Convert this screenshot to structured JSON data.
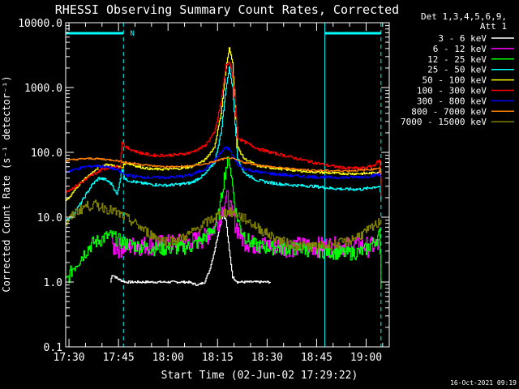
{
  "chart_data": {
    "type": "line",
    "title": "RHESSI Observing Summary Count Rates, Corrected",
    "xlabel": "Start Time (02-Jun-02 17:29:22)",
    "ylabel": "Corrected Count Rate (s⁻¹ detector⁻¹)",
    "yscale": "log",
    "ylim": [
      0.1,
      10000
    ],
    "xlim_minutes_after_1729": [
      0,
      98
    ],
    "y_ticks": [
      "0.1",
      "1.0",
      "10.0",
      "100.0",
      "1000.0",
      "10000.0"
    ],
    "x_ticks": [
      {
        "minute": 1,
        "label": "17:30"
      },
      {
        "minute": 16,
        "label": "17:45"
      },
      {
        "minute": 31,
        "label": "18:00"
      },
      {
        "minute": 46,
        "label": "18:15"
      },
      {
        "minute": 61,
        "label": "18:30"
      },
      {
        "minute": 76,
        "label": "18:45"
      },
      {
        "minute": 91,
        "label": "19:00"
      }
    ],
    "legend_header": [
      "Det 1,3,4,5,6,9,",
      "Att 1"
    ],
    "legend_position": "outside-right",
    "footer_timestamp": "16-Oct-2021 09:19",
    "annotations": [
      {
        "text": "N",
        "minute": 19.5
      }
    ],
    "flags": [
      {
        "name": "night",
        "start": 0,
        "end": 17.5,
        "color": "#00ffff"
      },
      {
        "name": "night",
        "start": 78.5,
        "end": 95.5,
        "color": "#00ffff"
      }
    ],
    "vertical_lines": [
      {
        "minute": 0,
        "style": "solid"
      },
      {
        "minute": 17.5,
        "style": "dashed"
      },
      {
        "minute": 78.5,
        "style": "solid"
      },
      {
        "minute": 95.5,
        "style": "dashed"
      }
    ],
    "series": [
      {
        "name": "3 - 6 keV",
        "color": "#ffffff",
        "x": [
          13.5,
          14,
          16,
          18,
          22,
          26,
          33,
          37,
          40,
          42,
          43.5,
          45,
          46.5,
          47.5,
          48.5,
          49.5,
          50.5,
          52,
          54,
          58,
          62
        ],
        "y": [
          1.0,
          1.3,
          1.1,
          1.0,
          1.0,
          1.0,
          1.0,
          1.0,
          0.9,
          1.0,
          1.5,
          3.0,
          7.0,
          11.0,
          9.0,
          3.0,
          1.2,
          1.0,
          1.0,
          1.0,
          1.0
        ]
      },
      {
        "name": "6 - 12 keV",
        "color": "#ff00ff",
        "x": [
          14,
          18,
          22,
          26,
          30,
          34,
          38,
          42,
          45,
          46.5,
          48,
          49,
          50,
          51.5,
          53,
          56,
          62,
          70,
          80,
          90,
          95
        ],
        "y": [
          3.5,
          3.6,
          3.8,
          3.9,
          4.0,
          4.1,
          4.3,
          5.0,
          7.0,
          10.0,
          17.0,
          20.0,
          13.0,
          8.0,
          5.0,
          4.0,
          3.7,
          3.7,
          3.7,
          3.7,
          3.7
        ]
      },
      {
        "name": "12 - 25 keV",
        "color": "#00ff00",
        "x": [
          0,
          2,
          4,
          6,
          8,
          10,
          12,
          14,
          16,
          18,
          22,
          26,
          30,
          34,
          38,
          41,
          43,
          45,
          46.5,
          47.5,
          48.5,
          49.5,
          50.5,
          51.5,
          53,
          56,
          60,
          65,
          70,
          75,
          80,
          85,
          90,
          93,
          95,
          95.5
        ],
        "y": [
          1.0,
          1.6,
          2.2,
          3.0,
          4.0,
          4.4,
          5.0,
          5.2,
          4.5,
          4.0,
          3.6,
          3.4,
          3.3,
          3.4,
          3.6,
          4.5,
          5.5,
          7.0,
          12.0,
          30.0,
          60.0,
          80.0,
          30.0,
          12.0,
          6.5,
          4.0,
          3.5,
          3.4,
          3.3,
          3.2,
          3.0,
          2.8,
          3.0,
          4.0,
          5.5,
          1.0
        ]
      },
      {
        "name": "25 - 50 keV",
        "color": "#00ffff",
        "x": [
          0,
          2,
          4,
          6,
          8,
          10,
          12,
          14,
          15.5,
          17,
          18,
          22,
          26,
          30,
          34,
          38,
          42,
          45,
          47,
          48.5,
          49.5,
          50.5,
          52,
          54,
          56,
          58,
          62,
          66,
          70,
          75,
          80,
          85,
          90,
          93,
          95,
          95.5
        ],
        "y": [
          9.0,
          11.0,
          15.0,
          22.0,
          32.0,
          40.0,
          38.0,
          32.0,
          22.0,
          55.0,
          38.0,
          34.0,
          32.0,
          31.0,
          32.0,
          34.0,
          45.0,
          70.0,
          200.0,
          1000.0,
          2000.0,
          1000.0,
          80.0,
          48.0,
          42.0,
          37.0,
          34.0,
          32.0,
          31.0,
          30.0,
          28.0,
          27.0,
          27.0,
          29.0,
          30.0,
          18.0
        ]
      },
      {
        "name": "50 - 100 keV",
        "color": "#ffff00",
        "x": [
          0,
          1,
          3,
          6,
          9,
          12,
          15,
          17,
          18,
          22,
          26,
          30,
          34,
          38,
          42,
          45,
          47,
          48.5,
          49.5,
          50.5,
          52,
          54,
          58,
          62,
          66,
          70,
          75,
          80,
          85,
          90,
          93,
          95,
          95.5
        ],
        "y": [
          18.0,
          20.0,
          28.0,
          40.0,
          55.0,
          65.0,
          62.0,
          58.0,
          70.0,
          60.0,
          55.0,
          55.0,
          56.0,
          60.0,
          75.0,
          120.0,
          400.0,
          2000.0,
          4000.0,
          2500.0,
          120.0,
          80.0,
          62.0,
          58.0,
          55.0,
          52.0,
          50.0,
          48.0,
          47.0,
          47.0,
          48.0,
          50.0,
          35.0
        ]
      },
      {
        "name": "100 - 300 keV",
        "color": "#ff0000",
        "x": [
          0,
          2,
          5,
          8,
          11,
          14,
          16.5,
          17,
          18,
          22,
          26,
          30,
          34,
          38,
          42,
          45,
          47,
          48.5,
          49.5,
          50.5,
          52,
          54,
          58,
          62,
          66,
          70,
          75,
          80,
          85,
          90,
          93,
          95,
          95.5
        ],
        "y": [
          25.0,
          28.0,
          35.0,
          45.0,
          55.0,
          60.0,
          60.0,
          150.0,
          120.0,
          100.0,
          90.0,
          90.0,
          92.0,
          100.0,
          125.0,
          200.0,
          600.0,
          2200.0,
          2500.0,
          1500.0,
          170.0,
          145.0,
          115.0,
          100.0,
          90.0,
          80.0,
          70.0,
          62.0,
          57.0,
          57.0,
          62.0,
          75.0,
          22.0
        ]
      },
      {
        "name": "300 - 800 keV",
        "color": "#0000ff",
        "x": [
          0,
          3,
          6,
          9,
          12,
          15,
          17,
          18,
          22,
          26,
          30,
          34,
          38,
          42,
          45,
          47,
          48.5,
          49.5,
          50.5,
          52,
          54,
          58,
          62,
          66,
          70,
          75,
          80,
          85,
          90,
          93,
          95,
          95.5
        ],
        "y": [
          50.0,
          55.0,
          60.0,
          62.0,
          60.0,
          55.0,
          48.0,
          45.0,
          42.0,
          41.0,
          41.0,
          42.0,
          45.0,
          55.0,
          75.0,
          100.0,
          120.0,
          110.0,
          90.0,
          65.0,
          56.0,
          50.0,
          47.0,
          45.0,
          43.0,
          42.0,
          41.0,
          41.0,
          42.0,
          44.0,
          46.0,
          40.0
        ]
      },
      {
        "name": "800 - 7000 keV",
        "color": "#ff8000",
        "x": [
          0,
          3,
          6,
          9,
          12,
          15,
          17,
          18,
          22,
          26,
          30,
          34,
          38,
          42,
          45,
          47,
          48.5,
          49.5,
          50.5,
          52,
          54,
          58,
          62,
          66,
          70,
          75,
          80,
          85,
          90,
          93,
          95,
          95.5
        ],
        "y": [
          75.0,
          78.0,
          80.0,
          80.0,
          78.0,
          75.0,
          72.0,
          70.0,
          66.0,
          62.0,
          60.0,
          60.0,
          62.0,
          66.0,
          72.0,
          78.0,
          80.0,
          82.0,
          80.0,
          75.0,
          70.0,
          64.0,
          60.0,
          57.0,
          55.0,
          53.0,
          52.0,
          52.0,
          53.0,
          55.0,
          58.0,
          45.0
        ]
      },
      {
        "name": "7000 - 15000 keV",
        "color": "#808000",
        "x": [
          0,
          3,
          6,
          9,
          12,
          15,
          18,
          21,
          24,
          27,
          30,
          33,
          36,
          39,
          42,
          45,
          48,
          50,
          52,
          55,
          58,
          61,
          64,
          67,
          70,
          73,
          76,
          79,
          82,
          85,
          88,
          91,
          93,
          95,
          95.5
        ],
        "y": [
          8.0,
          12.0,
          15.0,
          15.5,
          14.0,
          12.0,
          10.0,
          8.0,
          6.2,
          5.0,
          4.4,
          4.4,
          5.0,
          6.2,
          8.0,
          10.0,
          12.0,
          12.0,
          11.0,
          9.0,
          7.0,
          5.6,
          4.6,
          4.0,
          3.7,
          3.6,
          3.6,
          3.7,
          3.9,
          4.2,
          5.0,
          6.0,
          7.0,
          8.5,
          9.5
        ]
      }
    ]
  }
}
